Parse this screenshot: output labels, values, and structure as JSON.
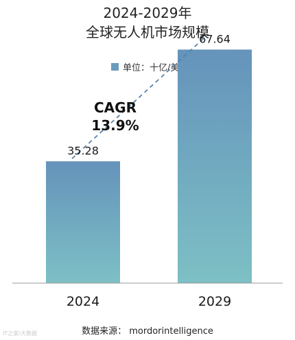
{
  "title_line1": "2024-2029年",
  "title_line2": "全球无人机市场规模",
  "legend": {
    "label": "单位：十亿/美元",
    "color": "#6a9bbd"
  },
  "cagr": {
    "label": "CAGR",
    "value": "13.9%"
  },
  "source": "数据来源： mordorintelligence",
  "watermark": "IT之家/大数据",
  "colors": {
    "bar_top": "#6593bb",
    "bar_bottom": "#7dc0c5",
    "trend_line": "#5582ad",
    "axis": "#9a9a9a"
  },
  "chart_data": {
    "type": "bar",
    "categories": [
      "2024",
      "2029"
    ],
    "values": [
      35.28,
      67.64
    ],
    "value_labels": [
      "35.28",
      "67.64"
    ],
    "ylim": [
      0,
      82
    ],
    "trend_line": "dashed",
    "grid": false
  }
}
